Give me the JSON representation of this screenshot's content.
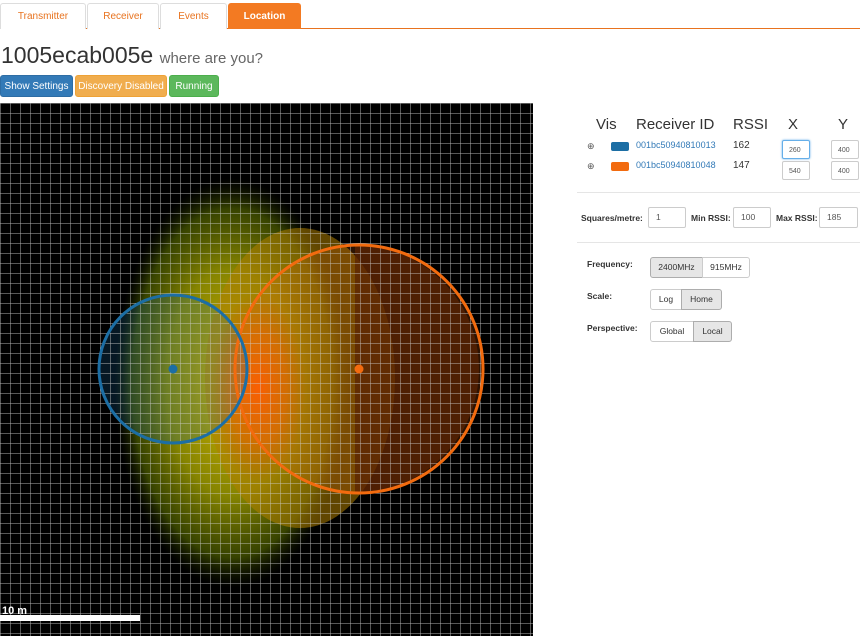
{
  "tabs": [
    {
      "label": "Transmitter"
    },
    {
      "label": "Receiver"
    },
    {
      "label": "Events"
    },
    {
      "label": "Location"
    }
  ],
  "header": {
    "device_id": "1005ecab005e",
    "subtitle": "where are you?"
  },
  "buttons": {
    "settings": "Show Settings",
    "discovery": "Discovery Disabled",
    "running": "Running"
  },
  "colors": {
    "receiver_blue": "#1c6ea4",
    "receiver_orange": "#f26b0f"
  },
  "map": {
    "scale_label": "10 m"
  },
  "receivers_table": {
    "headers": {
      "vis": "Vis",
      "receiver_id": "Receiver ID",
      "rssi": "RSSI",
      "x": "X",
      "y": "Y"
    },
    "rows": [
      {
        "vis_icon": "⊕",
        "color": "blue",
        "id": "001bc50940810013",
        "rssi": "162",
        "x": "260",
        "y": "400"
      },
      {
        "vis_icon": "⊕",
        "color": "orange",
        "id": "001bc50940810048",
        "rssi": "147",
        "x": "540",
        "y": "400"
      }
    ]
  },
  "settings": {
    "squares_label": "Squares/metre:",
    "squares_value": "1",
    "min_rssi_label": "Min RSSI:",
    "min_rssi_value": "100",
    "max_rssi_label": "Max RSSI:",
    "max_rssi_value": "185"
  },
  "options": {
    "frequency_label": "Frequency:",
    "freq_a": "2400MHz",
    "freq_b": "915MHz",
    "scale_label": "Scale:",
    "scale_a": "Log",
    "scale_b": "Home",
    "perspective_label": "Perspective:",
    "persp_a": "Global",
    "persp_b": "Local"
  }
}
